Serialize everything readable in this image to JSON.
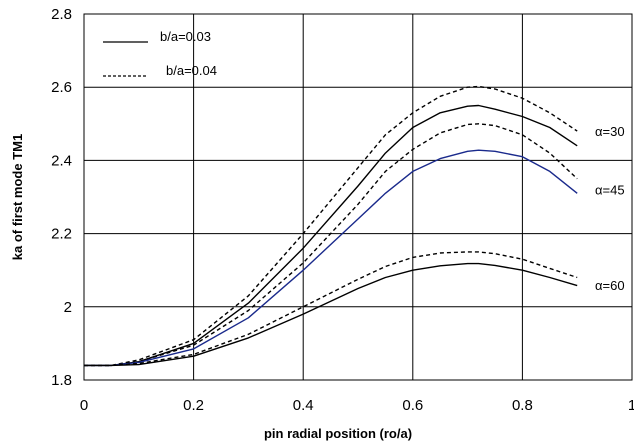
{
  "chart_data": {
    "type": "line",
    "xlabel": "pin radial position (ro/a)",
    "ylabel": "ka of first mode TM1",
    "xlim": [
      0,
      1
    ],
    "ylim": [
      1.8,
      2.8
    ],
    "x_ticks": [
      "0",
      "0.2",
      "0.4",
      "0.6",
      "0.8",
      "1"
    ],
    "y_ticks": [
      "1.8",
      "2",
      "2.2",
      "2.4",
      "2.6",
      "2.8"
    ],
    "grid": true,
    "legend": {
      "placement": "top-left",
      "entries": [
        {
          "label": "b/a=0.03",
          "style": "solid"
        },
        {
          "label": "b/a=0.04",
          "style": "dashed"
        }
      ]
    },
    "curve_labels": [
      {
        "text": "α=30",
        "y": 2.48
      },
      {
        "text": "α=45",
        "y": 2.32
      },
      {
        "text": "α=60",
        "y": 2.06
      }
    ],
    "series": [
      {
        "group": "α=30",
        "style": "dashed",
        "color": "#000000",
        "x": [
          0,
          0.05,
          0.1,
          0.2,
          0.3,
          0.4,
          0.5,
          0.55,
          0.6,
          0.65,
          0.7,
          0.72,
          0.75,
          0.8,
          0.85,
          0.9
        ],
        "y": [
          1.84,
          1.84,
          1.855,
          1.91,
          2.03,
          2.2,
          2.38,
          2.47,
          2.53,
          2.575,
          2.6,
          2.602,
          2.595,
          2.57,
          2.53,
          2.48
        ]
      },
      {
        "group": "α=30",
        "style": "solid",
        "color": "#000000",
        "x": [
          0,
          0.05,
          0.1,
          0.2,
          0.3,
          0.4,
          0.5,
          0.55,
          0.6,
          0.65,
          0.7,
          0.72,
          0.75,
          0.8,
          0.85,
          0.9
        ],
        "y": [
          1.84,
          1.84,
          1.85,
          1.9,
          2.01,
          2.16,
          2.33,
          2.42,
          2.49,
          2.53,
          2.548,
          2.55,
          2.54,
          2.52,
          2.49,
          2.44
        ]
      },
      {
        "group": "α=45",
        "style": "dashed",
        "color": "#000000",
        "x": [
          0,
          0.05,
          0.1,
          0.2,
          0.3,
          0.4,
          0.5,
          0.55,
          0.6,
          0.65,
          0.7,
          0.72,
          0.75,
          0.8,
          0.85,
          0.9
        ],
        "y": [
          1.84,
          1.84,
          1.85,
          1.895,
          1.99,
          2.12,
          2.28,
          2.37,
          2.43,
          2.475,
          2.498,
          2.5,
          2.495,
          2.47,
          2.42,
          2.35
        ]
      },
      {
        "group": "α=45",
        "style": "solid",
        "color": "#1a2a8c",
        "x": [
          0,
          0.05,
          0.1,
          0.2,
          0.3,
          0.4,
          0.5,
          0.55,
          0.6,
          0.65,
          0.7,
          0.72,
          0.75,
          0.8,
          0.85,
          0.9
        ],
        "y": [
          1.84,
          1.84,
          1.848,
          1.885,
          1.97,
          2.1,
          2.24,
          2.31,
          2.37,
          2.405,
          2.425,
          2.428,
          2.425,
          2.41,
          2.37,
          2.31
        ]
      },
      {
        "group": "α=60",
        "style": "dashed",
        "color": "#000000",
        "x": [
          0,
          0.05,
          0.1,
          0.2,
          0.3,
          0.4,
          0.5,
          0.55,
          0.6,
          0.65,
          0.7,
          0.72,
          0.75,
          0.8,
          0.85,
          0.9
        ],
        "y": [
          1.84,
          1.84,
          1.845,
          1.87,
          1.925,
          2.0,
          2.075,
          2.11,
          2.135,
          2.147,
          2.15,
          2.15,
          2.145,
          2.13,
          2.105,
          2.08
        ]
      },
      {
        "group": "α=60",
        "style": "solid",
        "color": "#000000",
        "x": [
          0,
          0.05,
          0.1,
          0.2,
          0.3,
          0.4,
          0.5,
          0.55,
          0.6,
          0.65,
          0.7,
          0.72,
          0.75,
          0.8,
          0.85,
          0.9
        ],
        "y": [
          1.84,
          1.84,
          1.842,
          1.865,
          1.915,
          1.98,
          2.05,
          2.08,
          2.1,
          2.112,
          2.118,
          2.118,
          2.113,
          2.1,
          2.08,
          2.058
        ]
      }
    ]
  }
}
